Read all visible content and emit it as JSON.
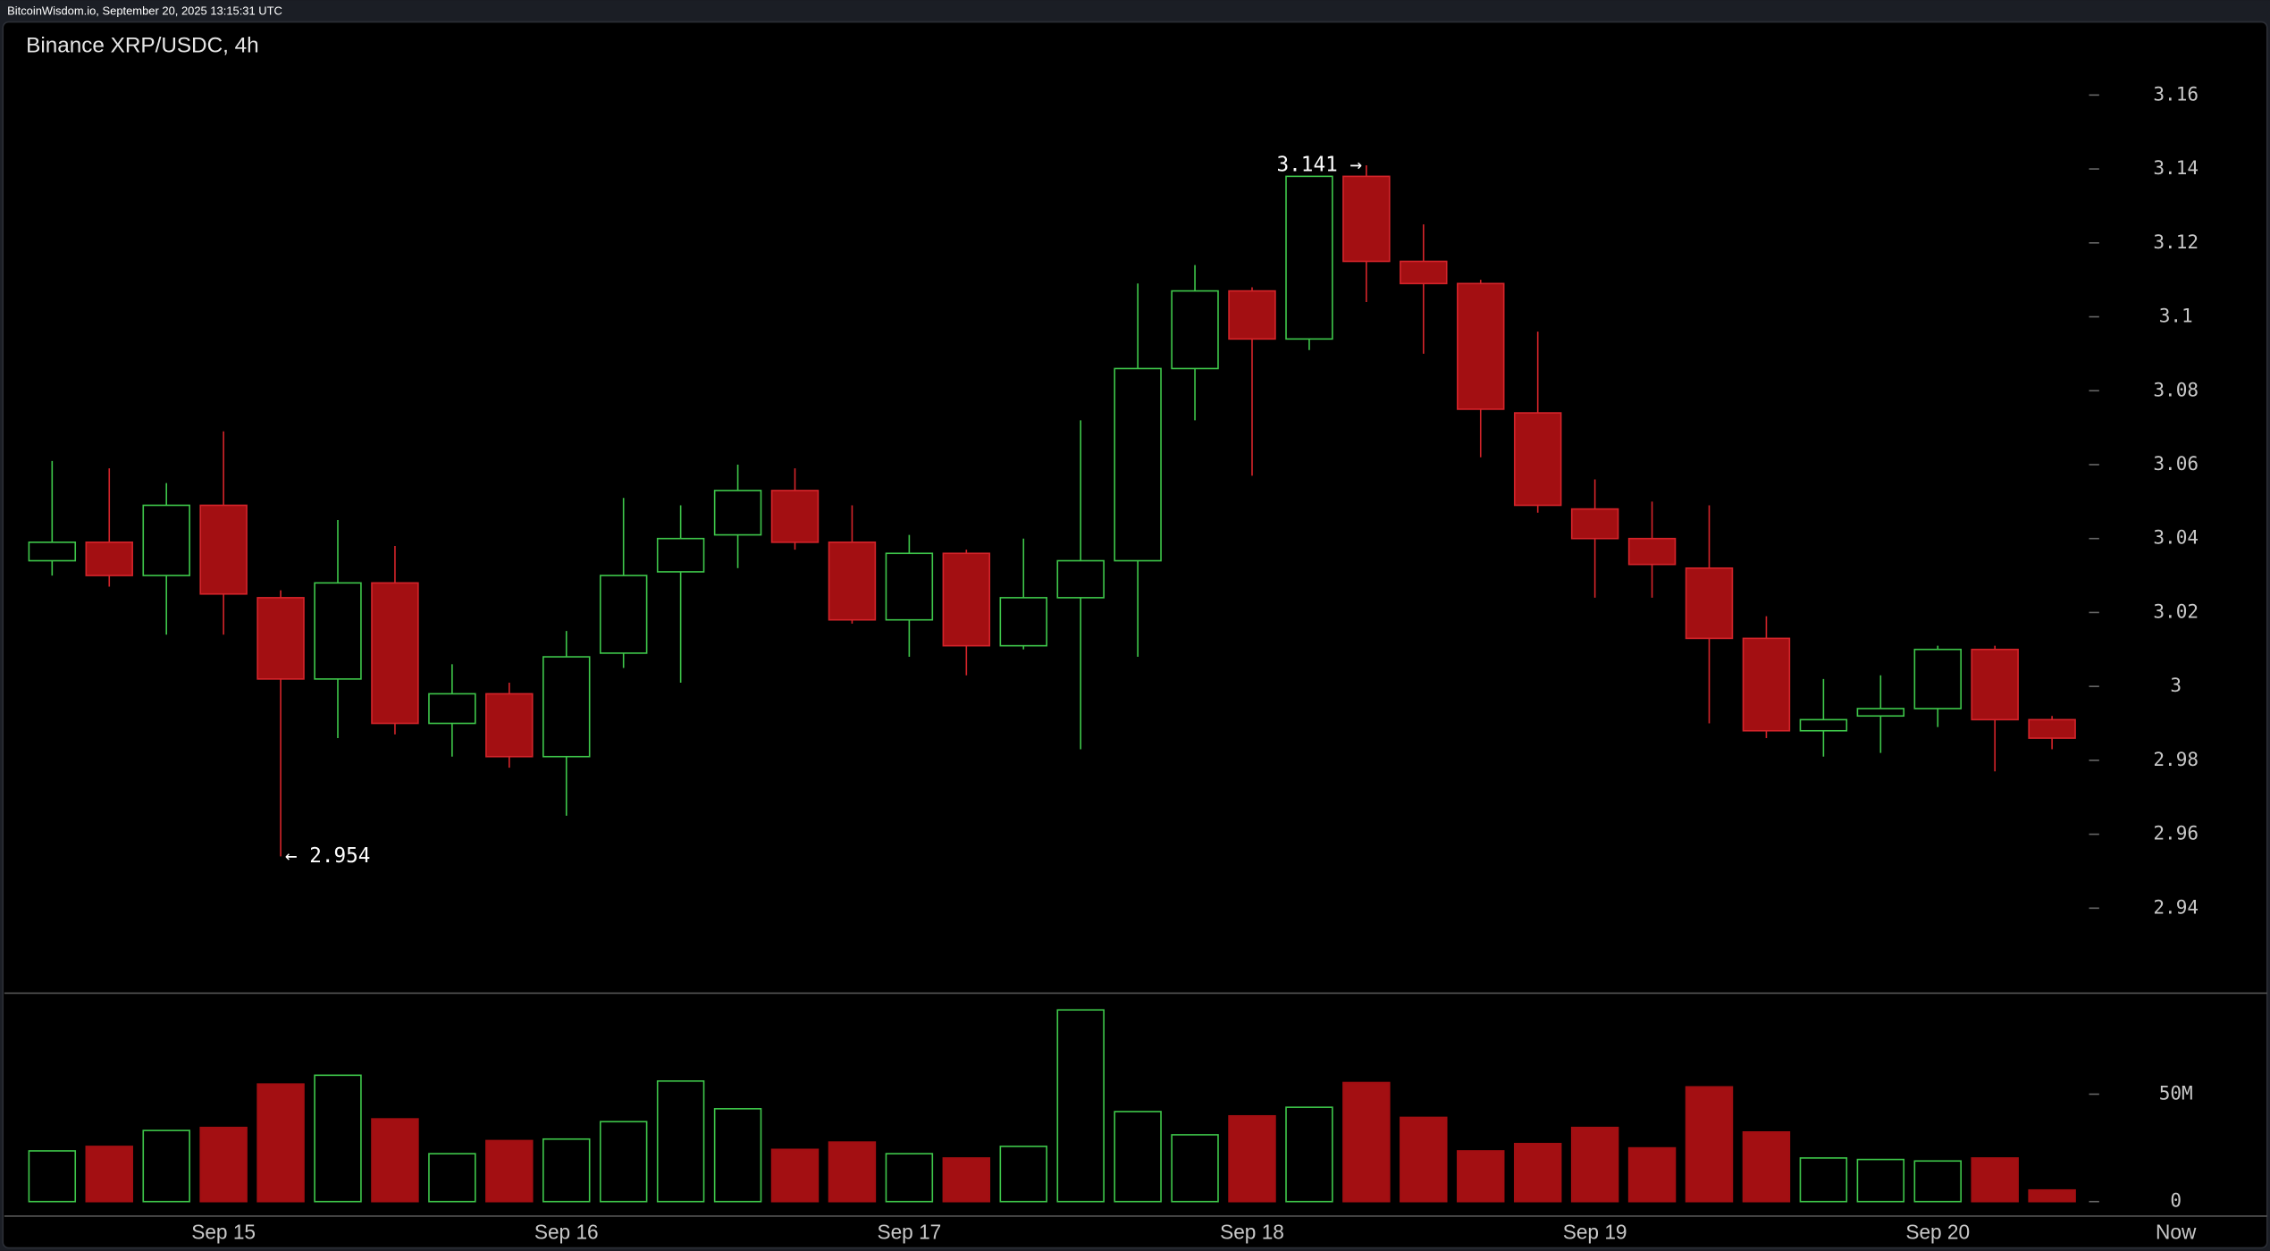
{
  "header": {
    "source": "BitcoinWisdom.io, September 20, 2025 13:15:31 UTC"
  },
  "chart_data": {
    "type": "candlestick",
    "title": "Binance XRP/USDC, 4h",
    "categories": [
      null,
      null,
      null,
      "Sep 15",
      null,
      null,
      null,
      null,
      null,
      "Sep 16",
      null,
      null,
      null,
      null,
      null,
      "Sep 17",
      null,
      null,
      null,
      null,
      null,
      "Sep 18",
      null,
      null,
      null,
      null,
      null,
      "Sep 19",
      null,
      null,
      null,
      null,
      null,
      "Sep 20",
      null,
      null
    ],
    "open": [
      3.034,
      3.039,
      3.03,
      3.049,
      3.024,
      3.002,
      3.028,
      2.99,
      2.998,
      2.981,
      3.009,
      3.031,
      3.041,
      3.053,
      3.039,
      3.018,
      3.036,
      3.011,
      3.024,
      3.034,
      3.086,
      3.107,
      3.094,
      3.138,
      3.115,
      3.109,
      3.074,
      3.048,
      3.04,
      3.032,
      3.013,
      2.988,
      2.992,
      2.994,
      3.01,
      2.991
    ],
    "high": [
      3.061,
      3.059,
      3.055,
      3.069,
      3.026,
      3.045,
      3.038,
      3.006,
      3.001,
      3.015,
      3.051,
      3.049,
      3.06,
      3.059,
      3.049,
      3.041,
      3.037,
      3.04,
      3.072,
      3.109,
      3.114,
      3.108,
      3.138,
      3.141,
      3.125,
      3.11,
      3.096,
      3.056,
      3.05,
      3.049,
      3.019,
      3.002,
      3.003,
      3.011,
      3.011,
      2.992
    ],
    "low": [
      3.03,
      3.027,
      3.014,
      3.014,
      2.954,
      2.986,
      2.987,
      2.981,
      2.978,
      2.965,
      3.005,
      3.001,
      3.032,
      3.037,
      3.017,
      3.008,
      3.003,
      3.01,
      2.983,
      3.008,
      3.072,
      3.057,
      3.091,
      3.104,
      3.09,
      3.062,
      3.047,
      3.024,
      3.024,
      2.99,
      2.986,
      2.981,
      2.982,
      2.989,
      2.977,
      2.983
    ],
    "close": [
      3.039,
      3.03,
      3.049,
      3.025,
      3.002,
      3.028,
      2.99,
      2.998,
      2.981,
      3.008,
      3.03,
      3.04,
      3.053,
      3.039,
      3.018,
      3.036,
      3.011,
      3.024,
      3.034,
      3.086,
      3.107,
      3.094,
      3.138,
      3.115,
      3.109,
      3.075,
      3.049,
      3.04,
      3.033,
      3.013,
      2.988,
      2.991,
      2.994,
      3.01,
      2.991,
      2.986
    ],
    "ylim": [
      2.917,
      3.17
    ],
    "yticks": [
      2.94,
      2.96,
      2.98,
      3,
      3.02,
      3.04,
      3.06,
      3.08,
      3.1,
      3.12,
      3.14,
      3.16
    ],
    "volume": {
      "values": [
        23600000,
        25700000,
        33100000,
        34500000,
        54700000,
        58800000,
        38500000,
        22300000,
        28400000,
        29100000,
        37200000,
        56100000,
        43200000,
        24300000,
        27700000,
        22300000,
        20300000,
        25700000,
        89200000,
        41900000,
        31100000,
        39900000,
        43900000,
        55400000,
        39200000,
        23600000,
        27000000,
        34500000,
        25000000,
        53400000,
        32400000,
        20300000,
        19600000,
        18900000,
        20300000,
        5400000
      ],
      "ylim": [
        0,
        97000000
      ],
      "yticks": [
        0,
        {
          "value": 50000000,
          "label": "50M"
        }
      ]
    },
    "annotations": [
      "3.141 →",
      "← 2.954"
    ],
    "x_end_label": "Now",
    "up_color": "#3ec64a",
    "down_color": "#a30f12"
  }
}
